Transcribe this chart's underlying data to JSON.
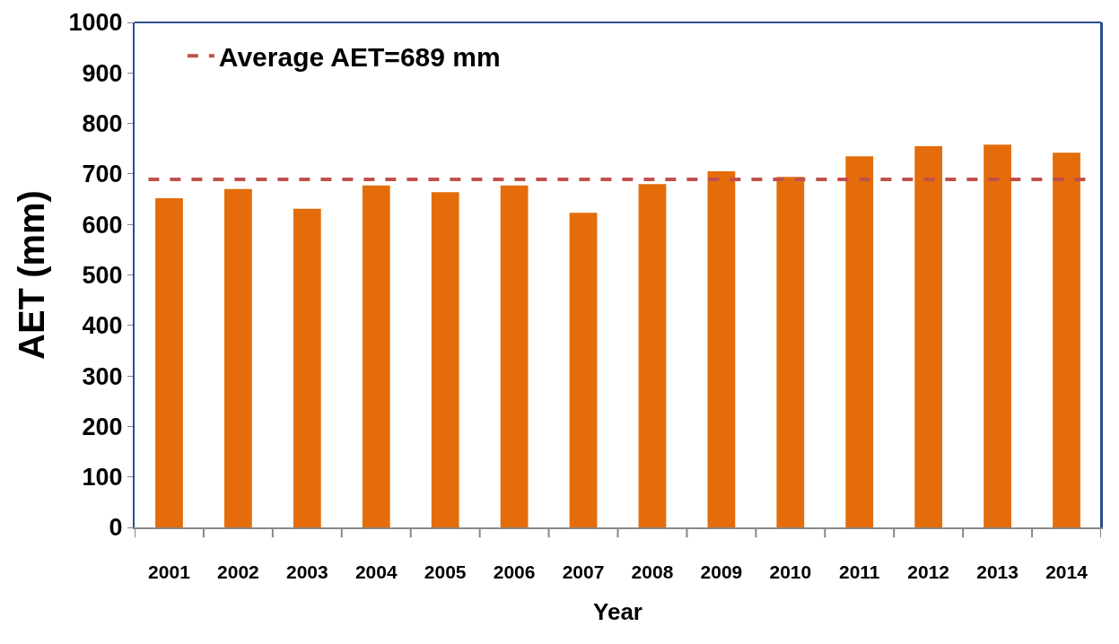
{
  "chart_data": {
    "type": "bar",
    "xlabel": "Year",
    "ylabel": "AET (mm)",
    "categories": [
      "2001",
      "2002",
      "2003",
      "2004",
      "2005",
      "2006",
      "2007",
      "2008",
      "2009",
      "2010",
      "2011",
      "2012",
      "2013",
      "2014"
    ],
    "values": [
      652,
      670,
      631,
      677,
      664,
      677,
      623,
      680,
      705,
      694,
      735,
      755,
      758,
      742
    ],
    "color": "#e46c0a",
    "ylim": [
      0,
      1000
    ],
    "yticks": [
      0,
      100,
      200,
      300,
      400,
      500,
      600,
      700,
      800,
      900,
      1000
    ],
    "grid": false,
    "ref_lines": [
      {
        "axis": "y",
        "value": 689,
        "label": "Average AET=689 mm",
        "color": "#c0504d",
        "line_style": "dashed"
      }
    ],
    "legend": "top left"
  }
}
